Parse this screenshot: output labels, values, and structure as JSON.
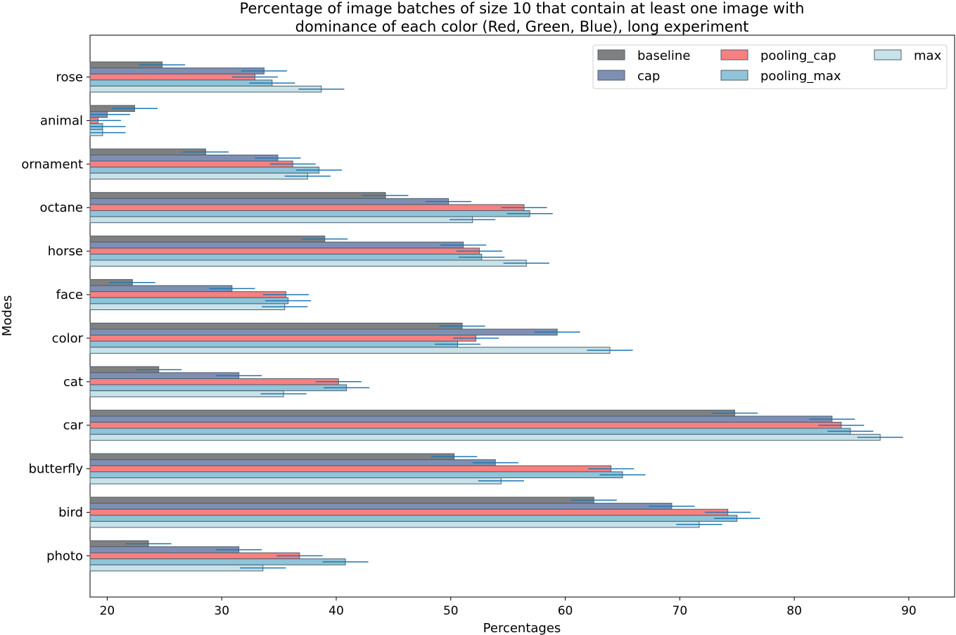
{
  "chart_data": {
    "type": "bar",
    "orientation": "horizontal",
    "title_line1": "Percentage of image batches of size  10 that contain at least one image with",
    "title_line2": "dominance of each color (Red, Green, Blue), long experiment",
    "xlabel": "Percentages",
    "ylabel": "Modes",
    "xlim": [
      18.5,
      94
    ],
    "xticks": [
      20,
      30,
      40,
      50,
      60,
      70,
      80,
      90
    ],
    "error": 2,
    "legend_position": "upper right",
    "categories": [
      "rose",
      "animal",
      "ornament",
      "octane",
      "horse",
      "face",
      "color",
      "cat",
      "car",
      "butterfly",
      "bird",
      "photo"
    ],
    "series": [
      {
        "name": "baseline",
        "color": "#808080",
        "values": [
          24.8,
          22.4,
          28.6,
          44.3,
          39.0,
          22.2,
          51.0,
          24.5,
          74.8,
          50.3,
          62.5,
          23.6
        ]
      },
      {
        "name": "cap",
        "color": "#7f8fb4",
        "values": [
          33.7,
          20.0,
          34.9,
          49.8,
          51.1,
          30.9,
          59.3,
          31.5,
          83.3,
          53.9,
          69.3,
          31.5
        ]
      },
      {
        "name": "pooling_cap",
        "color": "#f88080",
        "values": [
          32.9,
          19.2,
          36.2,
          56.4,
          52.5,
          35.6,
          52.2,
          40.2,
          84.1,
          64.0,
          74.2,
          36.8
        ]
      },
      {
        "name": "pooling_max",
        "color": "#8fc4d9",
        "values": [
          34.4,
          19.6,
          38.5,
          56.9,
          52.7,
          35.8,
          50.6,
          40.9,
          84.9,
          65.0,
          75.0,
          40.8
        ]
      },
      {
        "name": "max",
        "color": "#c8e2ea",
        "values": [
          38.7,
          19.6,
          37.5,
          51.9,
          56.6,
          35.5,
          63.9,
          35.4,
          87.5,
          54.4,
          71.7,
          33.6
        ]
      }
    ],
    "error_color": "#1f77b4",
    "bar_edge_color": "#4d5f6b"
  }
}
